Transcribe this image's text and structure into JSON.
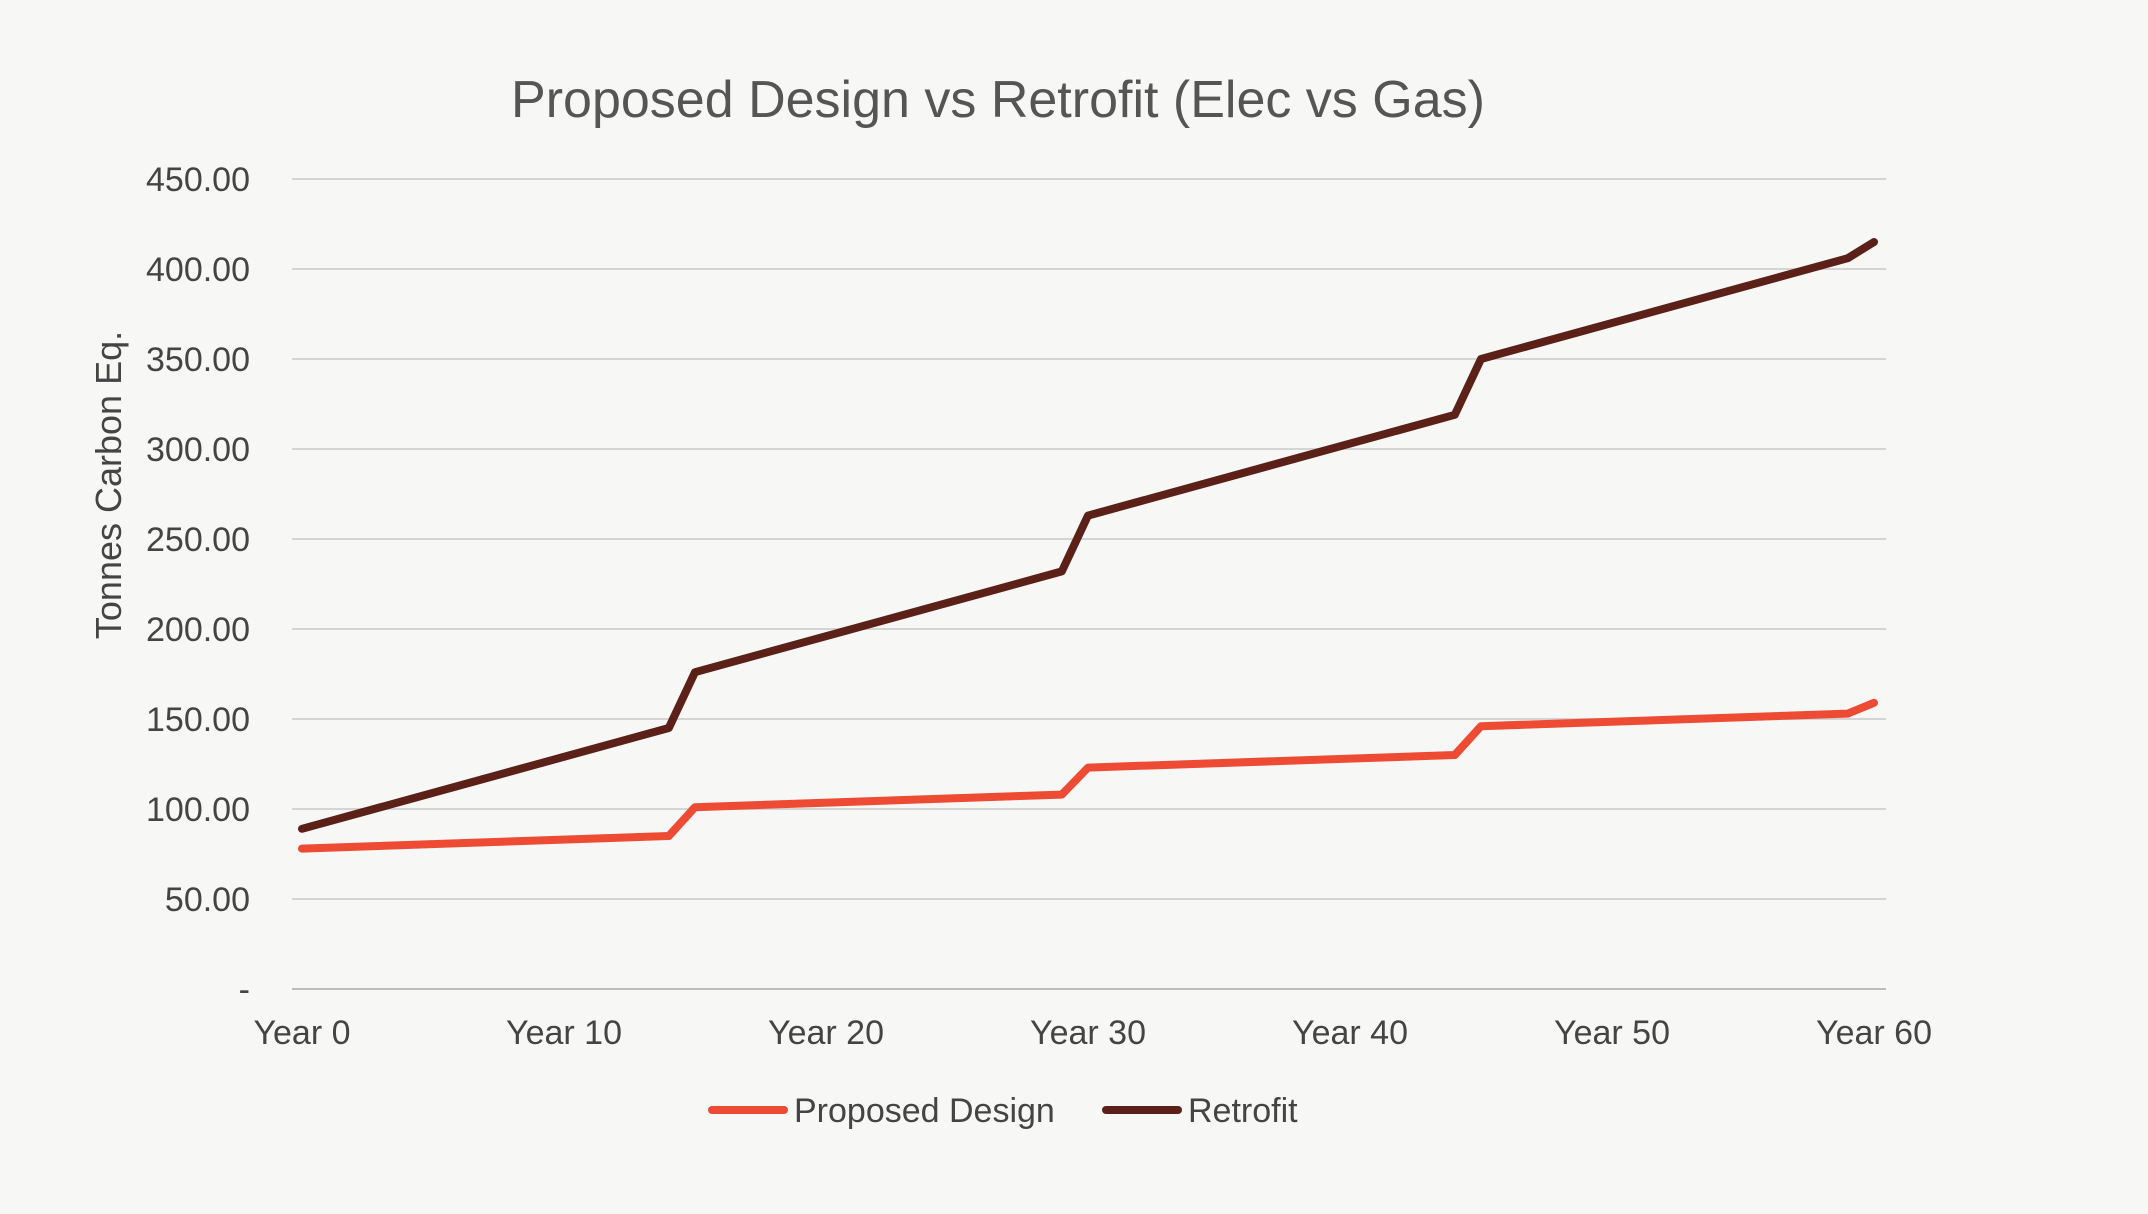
{
  "chart_data": {
    "type": "line",
    "title": "Proposed Design vs Retrofit (Elec vs Gas)",
    "xlabel": "",
    "ylabel": "Tonnes Carbon Eq.",
    "ylim": [
      0,
      450
    ],
    "y_ticks": [
      0,
      50,
      100,
      150,
      200,
      250,
      300,
      350,
      400,
      450
    ],
    "y_tick_labels": [
      "-",
      "50.00",
      "100.00",
      "150.00",
      "200.00",
      "250.00",
      "300.00",
      "350.00",
      "400.00",
      "450.00"
    ],
    "xlim": [
      0,
      60
    ],
    "x_tick_labels": [
      "Year 0",
      "Year 10",
      "Year 20",
      "Year 30",
      "Year 40",
      "Year 50",
      "Year 60"
    ],
    "x_tick_values": [
      0,
      10,
      20,
      30,
      40,
      50,
      60
    ],
    "grid": true,
    "legend_position": "bottom",
    "series": [
      {
        "name": "Proposed Design",
        "color": "#ee4b34",
        "points": [
          {
            "x": 0,
            "y": 78
          },
          {
            "x": 14,
            "y": 85
          },
          {
            "x": 15,
            "y": 101
          },
          {
            "x": 29,
            "y": 108
          },
          {
            "x": 30,
            "y": 123
          },
          {
            "x": 44,
            "y": 130
          },
          {
            "x": 45,
            "y": 146
          },
          {
            "x": 59,
            "y": 153
          },
          {
            "x": 60,
            "y": 159
          }
        ]
      },
      {
        "name": "Retrofit",
        "color": "#5b2118",
        "points": [
          {
            "x": 0,
            "y": 89
          },
          {
            "x": 14,
            "y": 145
          },
          {
            "x": 15,
            "y": 176
          },
          {
            "x": 29,
            "y": 232
          },
          {
            "x": 30,
            "y": 263
          },
          {
            "x": 44,
            "y": 319
          },
          {
            "x": 45,
            "y": 350
          },
          {
            "x": 59,
            "y": 406
          },
          {
            "x": 60,
            "y": 415
          }
        ]
      }
    ]
  }
}
